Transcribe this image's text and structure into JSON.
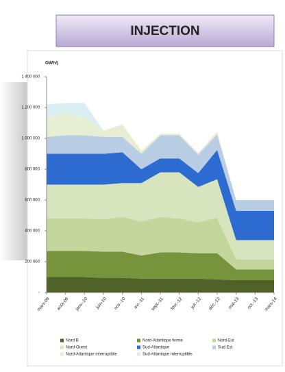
{
  "chart_data": {
    "type": "stacked_area",
    "title": "INJECTION",
    "y_label": "GWh/j",
    "categories": [
      "mars-09",
      "août-09",
      "janv.-10",
      "juin-10",
      "nov.-10",
      "avr.-11",
      "sept.-11",
      "févr.-12",
      "juil.-12",
      "déc.-12",
      "mai-13",
      "oct.-13",
      "mars-14"
    ],
    "series": [
      {
        "name": "Nord B",
        "color": "#4f6228",
        "values": [
          100000,
          100000,
          100000,
          95000,
          95000,
          90000,
          90000,
          90000,
          90000,
          85000,
          80000,
          80000,
          80000
        ]
      },
      {
        "name": "Nord-Atlantique ferme",
        "color": "#77933c",
        "values": [
          170000,
          170000,
          170000,
          170000,
          170000,
          150000,
          170000,
          170000,
          165000,
          170000,
          70000,
          70000,
          70000
        ]
      },
      {
        "name": "Nord-Est",
        "color": "#c3d69b",
        "values": [
          210000,
          210000,
          210000,
          210000,
          225000,
          220000,
          230000,
          220000,
          200000,
          230000,
          65000,
          65000,
          65000
        ]
      },
      {
        "name": "Nord-Ouest",
        "color": "#d7e4bd",
        "values": [
          220000,
          220000,
          220000,
          225000,
          220000,
          250000,
          290000,
          300000,
          230000,
          250000,
          125000,
          125000,
          125000
        ]
      },
      {
        "name": "Sud-Atlantique",
        "color": "#2e6bd1",
        "values": [
          200000,
          200000,
          200000,
          200000,
          200000,
          90000,
          90000,
          90000,
          90000,
          190000,
          190000,
          190000,
          190000
        ]
      },
      {
        "name": "Sud-Est",
        "color": "#b9cde5",
        "values": [
          110000,
          120000,
          120000,
          110000,
          100000,
          100000,
          150000,
          150000,
          120000,
          100000,
          70000,
          70000,
          70000
        ]
      },
      {
        "name": "Nord-Atlantique interruptible",
        "color": "#e6eed3",
        "values": [
          130000,
          140000,
          120000,
          40000,
          80000,
          20000,
          10000,
          10000,
          10000,
          20000,
          0,
          0,
          0
        ]
      },
      {
        "name": "Sud-Atlantique Interruptible",
        "color": "#dbeef4",
        "values": [
          80000,
          70000,
          90000,
          0,
          0,
          0,
          0,
          0,
          0,
          0,
          0,
          0,
          0
        ]
      }
    ],
    "ylim": [
      0,
      1400000
    ],
    "yticks": [
      {
        "value": 0,
        "label": "-"
      },
      {
        "value": 200000,
        "label": "200 000"
      },
      {
        "value": 400000,
        "label": "400 000"
      },
      {
        "value": 600000,
        "label": "600 000"
      },
      {
        "value": 800000,
        "label": "800 000"
      },
      {
        "value": 1000000,
        "label": "1 000 000"
      },
      {
        "value": 1200000,
        "label": "1 200 000"
      },
      {
        "value": 1400000,
        "label": "1 400 000"
      }
    ],
    "grid": false,
    "legend": "bottom"
  }
}
